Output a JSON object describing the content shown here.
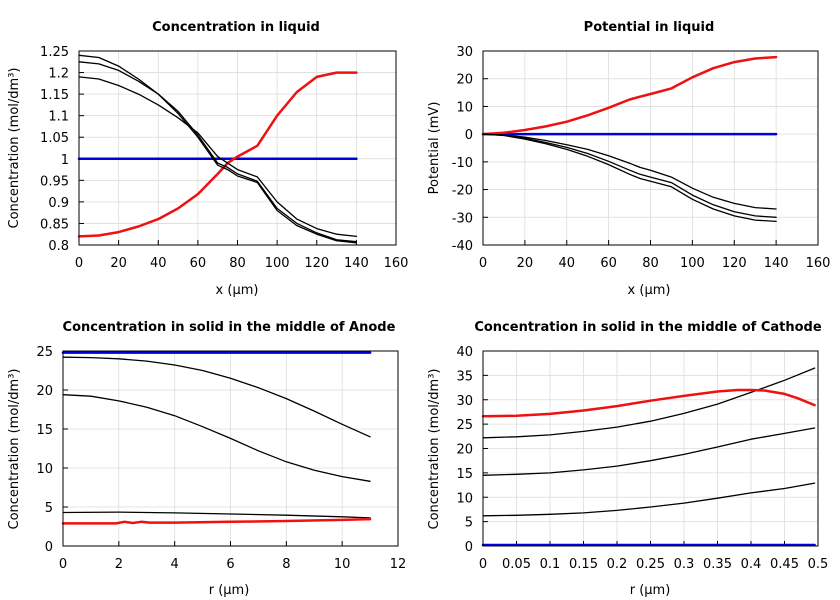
{
  "colors": {
    "red": "#ee1111",
    "blue": "#0000dd",
    "black": "#000000",
    "grid": "#dcdcdc"
  },
  "chart_data": [
    {
      "type": "line",
      "title": "Concentration in liquid",
      "xlabel": "x (µm)",
      "ylabel": "Concentration (mol/dm³)",
      "xlim": [
        0,
        160
      ],
      "ylim": [
        0.8,
        1.25
      ],
      "xticks": [
        "0",
        "20",
        "40",
        "60",
        "80",
        "100",
        "120",
        "140",
        "160"
      ],
      "yticks": [
        "0.8",
        "0.85",
        "0.9",
        "0.95",
        "1",
        "1.05",
        "1.1",
        "1.15",
        "1.2",
        "1.25"
      ],
      "series": [
        {
          "name": "blue",
          "color": "blue",
          "width": 2.5,
          "x": [
            0,
            140
          ],
          "y": [
            1.0,
            1.0
          ]
        },
        {
          "name": "red",
          "color": "red",
          "width": 2.5,
          "x": [
            0,
            10,
            20,
            30,
            40,
            50,
            60,
            70,
            75,
            80,
            90,
            100,
            110,
            120,
            130,
            140
          ],
          "y": [
            0.82,
            0.822,
            0.83,
            0.843,
            0.86,
            0.885,
            0.918,
            0.965,
            0.99,
            1.005,
            1.03,
            1.1,
            1.155,
            1.19,
            1.2,
            1.2
          ]
        },
        {
          "name": "black-1",
          "color": "black",
          "width": 1.3,
          "x": [
            0,
            10,
            20,
            30,
            40,
            50,
            60,
            70,
            75,
            80,
            90,
            100,
            110,
            120,
            130,
            140
          ],
          "y": [
            1.24,
            1.235,
            1.215,
            1.185,
            1.15,
            1.105,
            1.05,
            0.985,
            0.975,
            0.96,
            0.945,
            0.88,
            0.845,
            0.825,
            0.81,
            0.805
          ]
        },
        {
          "name": "black-2",
          "color": "black",
          "width": 1.3,
          "x": [
            0,
            10,
            20,
            30,
            40,
            50,
            60,
            70,
            75,
            80,
            90,
            100,
            110,
            120,
            130,
            140
          ],
          "y": [
            1.225,
            1.22,
            1.205,
            1.18,
            1.15,
            1.11,
            1.055,
            0.99,
            0.98,
            0.965,
            0.948,
            0.885,
            0.85,
            0.828,
            0.812,
            0.808
          ]
        },
        {
          "name": "black-3",
          "color": "black",
          "width": 1.3,
          "x": [
            0,
            10,
            20,
            30,
            40,
            50,
            60,
            70,
            75,
            80,
            90,
            100,
            110,
            120,
            130,
            140
          ],
          "y": [
            1.19,
            1.185,
            1.17,
            1.15,
            1.125,
            1.095,
            1.06,
            1.005,
            0.99,
            0.975,
            0.958,
            0.9,
            0.86,
            0.838,
            0.825,
            0.82
          ]
        }
      ]
    },
    {
      "type": "line",
      "title": "Potential in liquid",
      "xlabel": "x (µm)",
      "ylabel": "Potential (mV)",
      "xlim": [
        0,
        160
      ],
      "ylim": [
        -40,
        30
      ],
      "xticks": [
        "0",
        "20",
        "40",
        "60",
        "80",
        "100",
        "120",
        "140",
        "160"
      ],
      "yticks": [
        "-40",
        "-30",
        "-20",
        "-10",
        "0",
        "10",
        "20",
        "30"
      ],
      "series": [
        {
          "name": "blue",
          "color": "blue",
          "width": 2.5,
          "x": [
            0,
            140
          ],
          "y": [
            0,
            0
          ]
        },
        {
          "name": "red",
          "color": "red",
          "width": 2.5,
          "x": [
            0,
            10,
            20,
            30,
            40,
            50,
            60,
            70,
            75,
            80,
            90,
            100,
            110,
            120,
            130,
            140
          ],
          "y": [
            0,
            0.5,
            1.5,
            2.8,
            4.5,
            6.8,
            9.5,
            12.5,
            13.5,
            14.5,
            16.5,
            20.5,
            23.8,
            26,
            27.3,
            27.8
          ]
        },
        {
          "name": "black-1",
          "color": "black",
          "width": 1.3,
          "x": [
            0,
            10,
            20,
            30,
            40,
            50,
            60,
            70,
            75,
            80,
            90,
            100,
            110,
            120,
            130,
            140
          ],
          "y": [
            0,
            -0.5,
            -1.8,
            -3.5,
            -5.5,
            -8,
            -11,
            -14.5,
            -16,
            -17,
            -19,
            -23.5,
            -27,
            -29.5,
            -31,
            -31.5
          ]
        },
        {
          "name": "black-2",
          "color": "black",
          "width": 1.3,
          "x": [
            0,
            10,
            20,
            30,
            40,
            50,
            60,
            70,
            75,
            80,
            90,
            100,
            110,
            120,
            130,
            140
          ],
          "y": [
            0,
            -0.4,
            -1.5,
            -3,
            -4.8,
            -7,
            -9.8,
            -13,
            -14.5,
            -15.5,
            -17.5,
            -22,
            -25.5,
            -28,
            -29.5,
            -30
          ]
        },
        {
          "name": "black-3",
          "color": "black",
          "width": 1.3,
          "x": [
            0,
            10,
            20,
            30,
            40,
            50,
            60,
            70,
            75,
            80,
            90,
            100,
            110,
            120,
            130,
            140
          ],
          "y": [
            0,
            -0.3,
            -1.1,
            -2.3,
            -3.8,
            -5.5,
            -7.8,
            -10.5,
            -12,
            -13,
            -15.5,
            -19.5,
            -22.8,
            -25,
            -26.5,
            -27
          ]
        }
      ]
    },
    {
      "type": "line",
      "title": "Concentration in solid in the middle of Anode",
      "xlabel": "r (µm)",
      "ylabel": "Concentration (mol/dm³)",
      "xlim": [
        0,
        12
      ],
      "ylim": [
        0,
        25
      ],
      "xticks": [
        "0",
        "2",
        "4",
        "6",
        "8",
        "10",
        "12"
      ],
      "yticks": [
        "0",
        "5",
        "10",
        "15",
        "20",
        "25"
      ],
      "series": [
        {
          "name": "blue",
          "color": "blue",
          "width": 2.5,
          "x": [
            0,
            11
          ],
          "y": [
            24.8,
            24.8
          ]
        },
        {
          "name": "black-1",
          "color": "black",
          "width": 1.3,
          "x": [
            0,
            1,
            2,
            3,
            4,
            5,
            6,
            7,
            8,
            9,
            10,
            11
          ],
          "y": [
            24.2,
            24.15,
            24.0,
            23.7,
            23.2,
            22.5,
            21.5,
            20.3,
            18.9,
            17.3,
            15.6,
            14.0
          ]
        },
        {
          "name": "black-2",
          "color": "black",
          "width": 1.3,
          "x": [
            0,
            1,
            2,
            3,
            4,
            5,
            6,
            7,
            8,
            9,
            10,
            11
          ],
          "y": [
            19.4,
            19.2,
            18.6,
            17.8,
            16.7,
            15.3,
            13.8,
            12.2,
            10.8,
            9.7,
            8.9,
            8.3
          ]
        },
        {
          "name": "black-3",
          "color": "black",
          "width": 1.3,
          "x": [
            0,
            2,
            4,
            6,
            8,
            10,
            11
          ],
          "y": [
            4.3,
            4.35,
            4.25,
            4.1,
            3.95,
            3.75,
            3.6
          ]
        },
        {
          "name": "red",
          "color": "red",
          "width": 2.5,
          "x": [
            0,
            1,
            1.9,
            2.2,
            2.5,
            2.8,
            3.1,
            4,
            6,
            8,
            10,
            11
          ],
          "y": [
            2.9,
            2.9,
            2.9,
            3.1,
            2.95,
            3.1,
            3.0,
            3.0,
            3.1,
            3.2,
            3.35,
            3.45
          ]
        }
      ]
    },
    {
      "type": "line",
      "title": "Concentration in solid in the middle of Cathode",
      "xlabel": "r (µm)",
      "ylabel": "Concentration (mol/dm³)",
      "xlim": [
        0,
        0.5
      ],
      "ylim": [
        0,
        40
      ],
      "xticks": [
        "0",
        "0.05",
        "0.1",
        "0.15",
        "0.2",
        "0.25",
        "0.3",
        "0.35",
        "0.4",
        "0.45",
        "0.5"
      ],
      "yticks": [
        "0",
        "5",
        "10",
        "15",
        "20",
        "25",
        "30",
        "35",
        "40"
      ],
      "series": [
        {
          "name": "blue",
          "color": "blue",
          "width": 2.5,
          "x": [
            0,
            0.495
          ],
          "y": [
            0.2,
            0.2
          ]
        },
        {
          "name": "black-1",
          "color": "black",
          "width": 1.3,
          "x": [
            0,
            0.05,
            0.1,
            0.15,
            0.2,
            0.25,
            0.3,
            0.35,
            0.4,
            0.45,
            0.495
          ],
          "y": [
            6.2,
            6.3,
            6.5,
            6.8,
            7.3,
            8.0,
            8.8,
            9.8,
            10.9,
            11.8,
            12.9
          ]
        },
        {
          "name": "black-2",
          "color": "black",
          "width": 1.3,
          "x": [
            0,
            0.05,
            0.1,
            0.15,
            0.2,
            0.25,
            0.3,
            0.35,
            0.4,
            0.45,
            0.495
          ],
          "y": [
            14.5,
            14.7,
            15.0,
            15.6,
            16.4,
            17.5,
            18.8,
            20.3,
            21.9,
            23.1,
            24.2
          ]
        },
        {
          "name": "black-3",
          "color": "black",
          "width": 1.3,
          "x": [
            0,
            0.05,
            0.1,
            0.15,
            0.2,
            0.25,
            0.3,
            0.35,
            0.4,
            0.45,
            0.495
          ],
          "y": [
            22.2,
            22.4,
            22.8,
            23.5,
            24.4,
            25.6,
            27.2,
            29.1,
            31.5,
            34.0,
            36.5
          ]
        },
        {
          "name": "red",
          "color": "red",
          "width": 2.5,
          "x": [
            0,
            0.05,
            0.1,
            0.15,
            0.2,
            0.25,
            0.3,
            0.35,
            0.38,
            0.4,
            0.42,
            0.45,
            0.47,
            0.495
          ],
          "y": [
            26.6,
            26.7,
            27.1,
            27.8,
            28.7,
            29.8,
            30.8,
            31.7,
            32.0,
            32.0,
            31.9,
            31.2,
            30.3,
            28.9
          ]
        }
      ]
    }
  ]
}
